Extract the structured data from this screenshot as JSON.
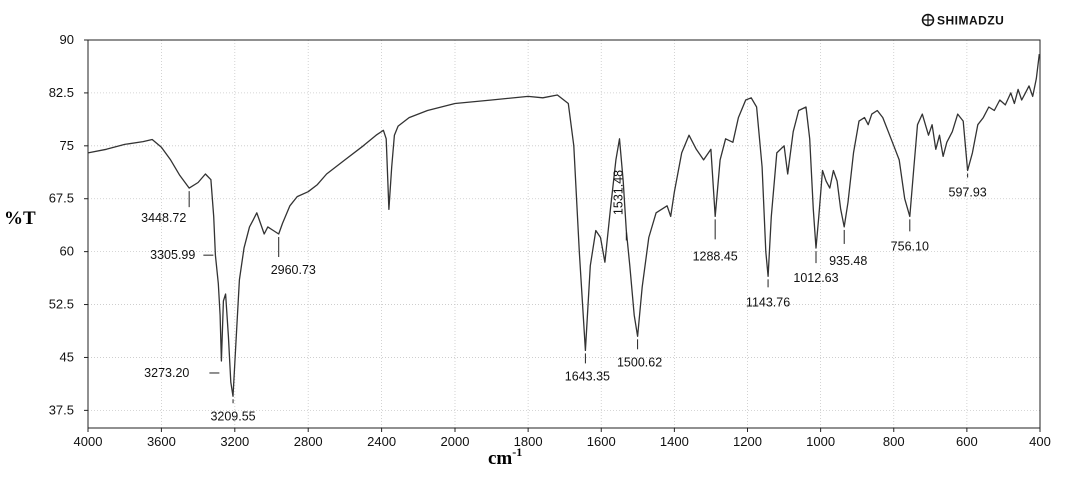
{
  "brand": "SHIMADZU",
  "chart_data": {
    "type": "line",
    "xlabel": "cm",
    "xlabel_sup": "-1",
    "ylabel": "%T",
    "xlim": [
      4000,
      400
    ],
    "ylim": [
      35,
      90
    ],
    "x_ticks": [
      4000,
      3600,
      3200,
      2800,
      2400,
      2000,
      1800,
      1600,
      1400,
      1200,
      1000,
      800,
      600,
      400
    ],
    "x_tick_labels": [
      "4000",
      "3600",
      "3200",
      "2800",
      "2400",
      "2000",
      "1800",
      "1600",
      "1400",
      "1200",
      "1000",
      "800",
      "600",
      "400"
    ],
    "y_ticks": [
      37.5,
      45,
      52.5,
      60,
      67.5,
      75,
      82.5,
      90
    ],
    "y_tick_labels": [
      "37.5",
      "45",
      "52.5",
      "60",
      "67.5",
      "75",
      "82.5",
      "90"
    ],
    "grid": true,
    "series": [
      {
        "points": [
          [
            4000,
            74.0
          ],
          [
            3900,
            74.5
          ],
          [
            3800,
            75.2
          ],
          [
            3700,
            75.6
          ],
          [
            3650,
            75.9
          ],
          [
            3600,
            74.8
          ],
          [
            3550,
            73.0
          ],
          [
            3500,
            70.8
          ],
          [
            3448.72,
            69.0
          ],
          [
            3400,
            69.8
          ],
          [
            3360,
            71.0
          ],
          [
            3330,
            70.2
          ],
          [
            3315,
            65.0
          ],
          [
            3305.99,
            59.5
          ],
          [
            3290,
            55.5
          ],
          [
            3280,
            51.0
          ],
          [
            3273.2,
            44.5
          ],
          [
            3262,
            53.0
          ],
          [
            3250,
            54.0
          ],
          [
            3235,
            48.0
          ],
          [
            3222,
            41.5
          ],
          [
            3209.55,
            39.5
          ],
          [
            3195,
            46.5
          ],
          [
            3175,
            56.0
          ],
          [
            3150,
            60.5
          ],
          [
            3120,
            63.5
          ],
          [
            3100,
            64.5
          ],
          [
            3080,
            65.5
          ],
          [
            3060,
            64.0
          ],
          [
            3040,
            62.5
          ],
          [
            3020,
            63.5
          ],
          [
            2990,
            63.0
          ],
          [
            2960.73,
            62.5
          ],
          [
            2940,
            64.0
          ],
          [
            2900,
            66.5
          ],
          [
            2860,
            67.8
          ],
          [
            2800,
            68.5
          ],
          [
            2750,
            69.5
          ],
          [
            2700,
            71.0
          ],
          [
            2600,
            73.0
          ],
          [
            2500,
            75.0
          ],
          [
            2430,
            76.5
          ],
          [
            2390,
            77.2
          ],
          [
            2375,
            76.0
          ],
          [
            2360,
            66.0
          ],
          [
            2345,
            72.0
          ],
          [
            2330,
            76.5
          ],
          [
            2310,
            77.8
          ],
          [
            2250,
            79.0
          ],
          [
            2150,
            80.0
          ],
          [
            2000,
            81.0
          ],
          [
            1900,
            81.5
          ],
          [
            1800,
            82.0
          ],
          [
            1760,
            81.8
          ],
          [
            1720,
            82.2
          ],
          [
            1690,
            81.0
          ],
          [
            1675,
            75.0
          ],
          [
            1660,
            60.0
          ],
          [
            1643.35,
            46.0
          ],
          [
            1630,
            58.0
          ],
          [
            1615,
            63.0
          ],
          [
            1602,
            62.0
          ],
          [
            1590,
            58.5
          ],
          [
            1575,
            66.0
          ],
          [
            1560,
            73.0
          ],
          [
            1550,
            76.0
          ],
          [
            1540,
            70.0
          ],
          [
            1531.48,
            63.0
          ],
          [
            1522,
            58.0
          ],
          [
            1510,
            51.0
          ],
          [
            1500.62,
            48.0
          ],
          [
            1488,
            55.0
          ],
          [
            1470,
            62.0
          ],
          [
            1450,
            65.5
          ],
          [
            1420,
            66.5
          ],
          [
            1410,
            65.0
          ],
          [
            1400,
            68.5
          ],
          [
            1380,
            74.0
          ],
          [
            1360,
            76.5
          ],
          [
            1340,
            74.5
          ],
          [
            1320,
            73.0
          ],
          [
            1300,
            74.5
          ],
          [
            1288.45,
            65.0
          ],
          [
            1275,
            73.0
          ],
          [
            1260,
            76.0
          ],
          [
            1240,
            75.5
          ],
          [
            1225,
            79.0
          ],
          [
            1205,
            81.5
          ],
          [
            1190,
            81.8
          ],
          [
            1175,
            80.5
          ],
          [
            1160,
            72.0
          ],
          [
            1150,
            60.0
          ],
          [
            1143.76,
            56.5
          ],
          [
            1135,
            65.0
          ],
          [
            1120,
            74.0
          ],
          [
            1100,
            75.0
          ],
          [
            1090,
            71.0
          ],
          [
            1075,
            77.0
          ],
          [
            1060,
            80.0
          ],
          [
            1040,
            80.5
          ],
          [
            1030,
            76.0
          ],
          [
            1020,
            66.0
          ],
          [
            1012.63,
            60.5
          ],
          [
            1005,
            65.0
          ],
          [
            995,
            71.5
          ],
          [
            985,
            70.0
          ],
          [
            975,
            69.0
          ],
          [
            965,
            71.5
          ],
          [
            955,
            70.0
          ],
          [
            945,
            66.0
          ],
          [
            935.48,
            63.5
          ],
          [
            925,
            67.0
          ],
          [
            910,
            74.0
          ],
          [
            895,
            78.5
          ],
          [
            880,
            79.0
          ],
          [
            870,
            78.0
          ],
          [
            860,
            79.5
          ],
          [
            845,
            80.0
          ],
          [
            830,
            79.0
          ],
          [
            815,
            77.0
          ],
          [
            800,
            75.0
          ],
          [
            785,
            73.0
          ],
          [
            770,
            67.5
          ],
          [
            756.1,
            65.0
          ],
          [
            745,
            72.0
          ],
          [
            735,
            78.0
          ],
          [
            722,
            79.5
          ],
          [
            705,
            76.5
          ],
          [
            695,
            78.0
          ],
          [
            685,
            74.5
          ],
          [
            675,
            76.5
          ],
          [
            665,
            73.5
          ],
          [
            655,
            75.5
          ],
          [
            640,
            77.0
          ],
          [
            625,
            79.5
          ],
          [
            610,
            78.5
          ],
          [
            597.93,
            71.5
          ],
          [
            585,
            74.0
          ],
          [
            570,
            78.0
          ],
          [
            555,
            79.0
          ],
          [
            540,
            80.5
          ],
          [
            525,
            80.0
          ],
          [
            510,
            81.5
          ],
          [
            495,
            80.8
          ],
          [
            480,
            82.5
          ],
          [
            470,
            81.0
          ],
          [
            460,
            83.0
          ],
          [
            450,
            81.5
          ],
          [
            440,
            82.5
          ],
          [
            430,
            83.5
          ],
          [
            420,
            82.0
          ],
          [
            410,
            84.5
          ],
          [
            402,
            88.0
          ]
        ]
      }
    ],
    "annotations": [
      {
        "label": "3448.72",
        "x": 3448.72,
        "y": 69.0
      },
      {
        "label": "3305.99",
        "x": 3305.99,
        "y": 59.5
      },
      {
        "label": "3273.20",
        "x": 3273.2,
        "y": 44.5
      },
      {
        "label": "3209.55",
        "x": 3209.55,
        "y": 39.5
      },
      {
        "label": "2960.73",
        "x": 2960.73,
        "y": 62.5
      },
      {
        "label": "1643.35",
        "x": 1643.35,
        "y": 46.0
      },
      {
        "label": "1531.48",
        "x": 1531.48,
        "y": 63.0
      },
      {
        "label": "1500.62",
        "x": 1500.62,
        "y": 48.0
      },
      {
        "label": "1288.45",
        "x": 1288.45,
        "y": 65.0
      },
      {
        "label": "1143.76",
        "x": 1143.76,
        "y": 56.5
      },
      {
        "label": "1012.63",
        "x": 1012.63,
        "y": 60.5
      },
      {
        "label": "935.48",
        "x": 935.48,
        "y": 63.5
      },
      {
        "label": "756.10",
        "x": 756.1,
        "y": 65.0
      },
      {
        "label": "597.93",
        "x": 597.93,
        "y": 71.5
      }
    ]
  }
}
